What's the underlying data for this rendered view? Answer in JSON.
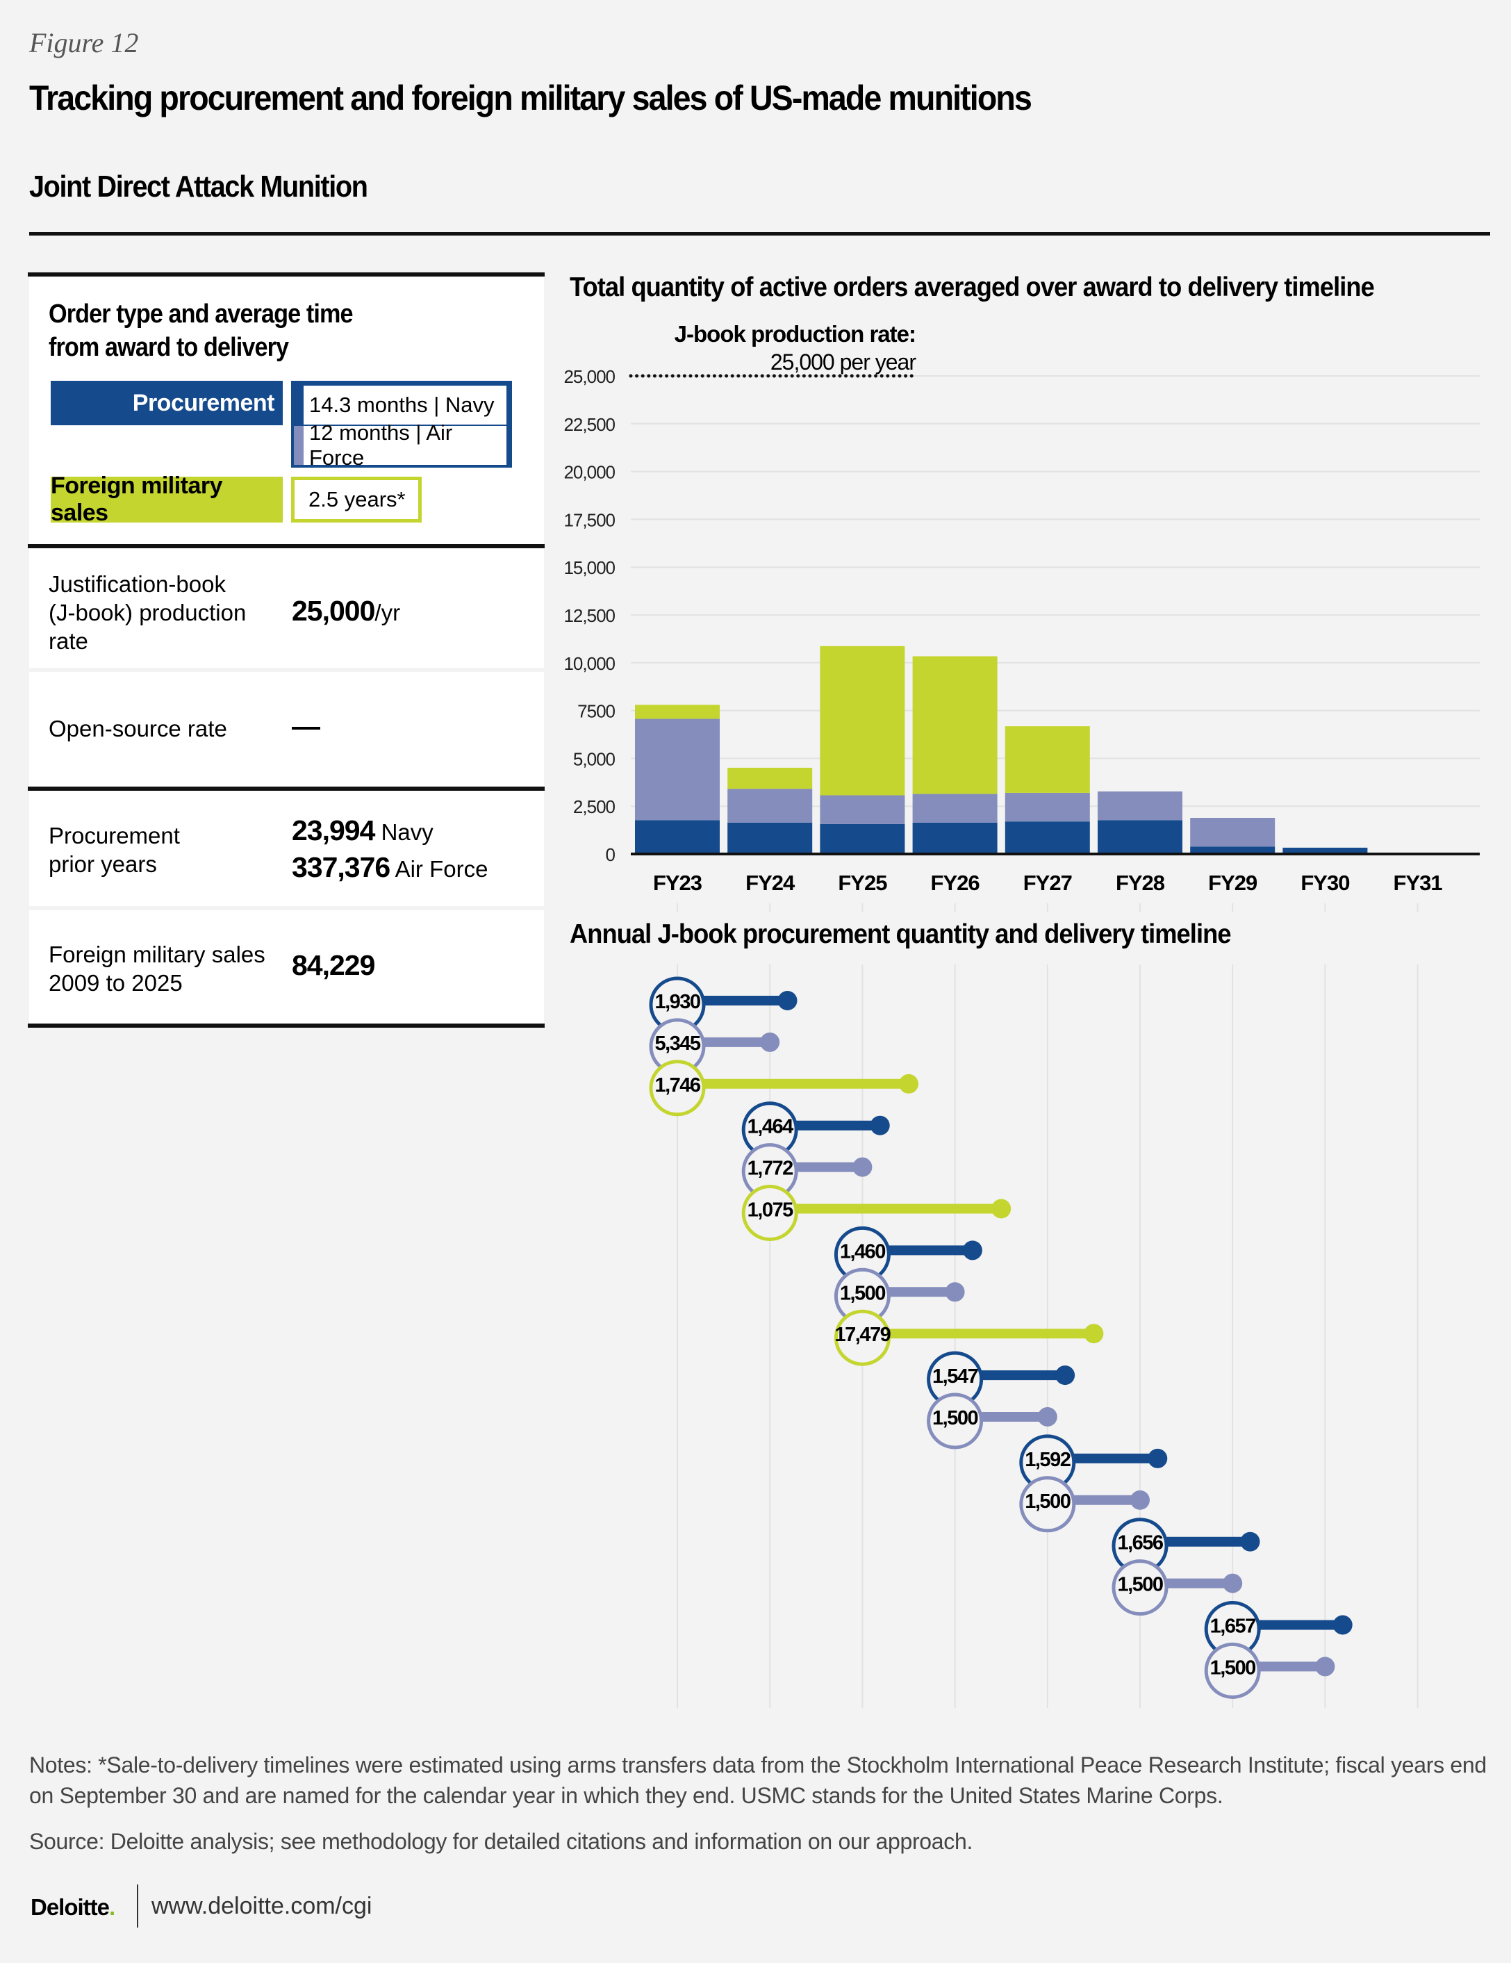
{
  "header": {
    "figure_label": "Figure 12",
    "title": "Tracking procurement and foreign military sales of US-made munitions",
    "subtitle": "Joint Direct Attack Munition"
  },
  "colors": {
    "navy": "#154a8c",
    "air_force": "#848dbb",
    "fms": "#c4d52f",
    "gridline": "#e2e2e2",
    "background": "#f3f3f3"
  },
  "left_panel": {
    "legend_title_line1": "Order type and average time",
    "legend_title_line2": "from award to delivery",
    "procurement_label": "Procurement",
    "navy_time": "14.3 months | Navy",
    "af_time": "12 months | Air Force",
    "fms_label": "Foreign military sales",
    "fms_time": "2.5 years*",
    "rows": [
      {
        "label_lines": [
          "Justification-book",
          "(J-book) production",
          "rate"
        ],
        "value": "25,000",
        "unit": "/yr"
      },
      {
        "label_lines": [
          "Open-source rate"
        ],
        "value": "—",
        "unit": ""
      },
      {
        "label_lines": [
          "Procurement",
          "prior years"
        ],
        "value_lines": [
          {
            "value": "23,994",
            "unit": " Navy"
          },
          {
            "value": "337,376",
            "unit": " Air Force"
          }
        ]
      },
      {
        "label_lines": [
          "Foreign military sales",
          "2009 to 2025"
        ],
        "value": "84,229",
        "unit": ""
      }
    ]
  },
  "chart_data": [
    {
      "type": "bar",
      "stacked": true,
      "title": "Total quantity of active orders averaged over award to delivery timeline",
      "categories": [
        "FY23",
        "FY24",
        "FY25",
        "FY26",
        "FY27",
        "FY28",
        "FY29",
        "FY30",
        "FY31"
      ],
      "series": [
        {
          "name": "Procurement | Navy",
          "color": "#154a8c",
          "values": [
            1770,
            1640,
            1570,
            1640,
            1700,
            1770,
            390,
            330,
            0
          ]
        },
        {
          "name": "Procurement | Air Force",
          "color": "#848dbb",
          "values": [
            5300,
            1770,
            1500,
            1500,
            1500,
            1500,
            1500,
            0,
            0
          ]
        },
        {
          "name": "Foreign military sales",
          "color": "#c4d52f",
          "values": [
            730,
            1100,
            7800,
            7200,
            3480,
            0,
            0,
            0,
            0
          ]
        }
      ],
      "ylim": [
        0,
        25000
      ],
      "yticks": [
        0,
        2500,
        5000,
        7500,
        10000,
        12500,
        15000,
        17500,
        20000,
        22500,
        25000
      ],
      "ytick_labels": [
        "0",
        "2,500",
        "5,000",
        "7500",
        "10,000",
        "12,500",
        "15,000",
        "17,500",
        "20,000",
        "22,500",
        "25,000"
      ],
      "grid": true,
      "xlabel": "",
      "ylabel": "",
      "reference_line": {
        "value": 25000,
        "label_bold": "J-book production rate:",
        "label": "25,000 per year"
      }
    },
    {
      "type": "timeline",
      "title": "Annual J-book procurement quantity and delivery timeline",
      "categories": [
        "FY23",
        "FY24",
        "FY25",
        "FY26",
        "FY27",
        "FY28",
        "FY29",
        "FY30",
        "FY31"
      ],
      "items": [
        {
          "series": "navy",
          "start": "FY23",
          "duration_years": 1.19,
          "quantity": "1,930"
        },
        {
          "series": "air_force",
          "start": "FY23",
          "duration_years": 1.0,
          "quantity": "5,345"
        },
        {
          "series": "fms",
          "start": "FY23",
          "duration_years": 2.5,
          "quantity": "1,746"
        },
        {
          "series": "navy",
          "start": "FY24",
          "duration_years": 1.19,
          "quantity": "1,464"
        },
        {
          "series": "air_force",
          "start": "FY24",
          "duration_years": 1.0,
          "quantity": "1,772"
        },
        {
          "series": "fms",
          "start": "FY24",
          "duration_years": 2.5,
          "quantity": "1,075"
        },
        {
          "series": "navy",
          "start": "FY25",
          "duration_years": 1.19,
          "quantity": "1,460"
        },
        {
          "series": "air_force",
          "start": "FY25",
          "duration_years": 1.0,
          "quantity": "1,500"
        },
        {
          "series": "fms",
          "start": "FY25",
          "duration_years": 2.5,
          "quantity": "17,479"
        },
        {
          "series": "navy",
          "start": "FY26",
          "duration_years": 1.19,
          "quantity": "1,547"
        },
        {
          "series": "air_force",
          "start": "FY26",
          "duration_years": 1.0,
          "quantity": "1,500"
        },
        {
          "series": "navy",
          "start": "FY27",
          "duration_years": 1.19,
          "quantity": "1,592"
        },
        {
          "series": "air_force",
          "start": "FY27",
          "duration_years": 1.0,
          "quantity": "1,500"
        },
        {
          "series": "navy",
          "start": "FY28",
          "duration_years": 1.19,
          "quantity": "1,656"
        },
        {
          "series": "air_force",
          "start": "FY28",
          "duration_years": 1.0,
          "quantity": "1,500"
        },
        {
          "series": "navy",
          "start": "FY29",
          "duration_years": 1.19,
          "quantity": "1,657"
        },
        {
          "series": "air_force",
          "start": "FY29",
          "duration_years": 1.0,
          "quantity": "1,500"
        }
      ]
    }
  ],
  "footer": {
    "notes": "Notes: *Sale-to-delivery timelines were estimated using arms transfers data from the Stockholm International Peace Research Institute; fiscal years end on September 30 and are named for the calendar year in which they end. USMC stands for the United States Marine Corps.",
    "source": "Source: Deloitte analysis; see methodology for detailed citations and information on our approach.",
    "logo": "Deloitte",
    "logo_dot": ".",
    "url": "www.deloitte.com/cgi"
  }
}
